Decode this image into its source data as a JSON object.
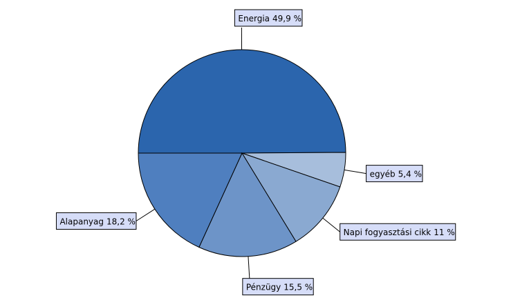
{
  "chart_data": {
    "type": "pie",
    "categories": [
      "Energia",
      "egyéb",
      "Napi fogyasztási cikk",
      "Pénzügy",
      "Alapanyag"
    ],
    "values": [
      49.9,
      5.4,
      11,
      15.5,
      18.2
    ],
    "value_labels": [
      "49,9 %",
      "5,4 %",
      "11 %",
      "15,5 %",
      "18,2 %"
    ],
    "colors": [
      "#2b65ad",
      "#a7bedc",
      "#8aa9d1",
      "#6d94c8",
      "#4f7fbf"
    ]
  }
}
